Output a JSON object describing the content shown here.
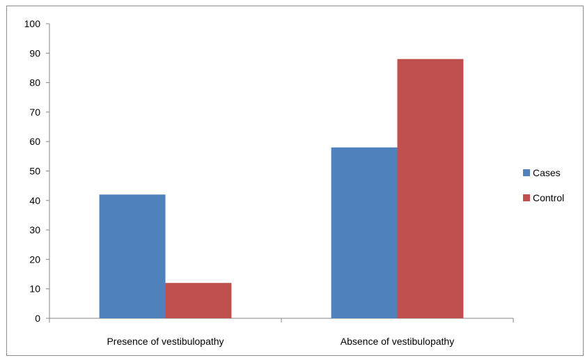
{
  "chart_data": {
    "type": "bar",
    "title": "",
    "xlabel": "",
    "ylabel": "",
    "categories": [
      "Presence of vestibulopathy",
      "Absence of vestibulopathy"
    ],
    "series": [
      {
        "name": "Cases",
        "color": "#4f81bd",
        "values": [
          42,
          58
        ]
      },
      {
        "name": "Control",
        "color": "#c0504d",
        "values": [
          12,
          88
        ]
      }
    ],
    "ylim": [
      0,
      100
    ],
    "yticks": [
      0,
      10,
      20,
      30,
      40,
      50,
      60,
      70,
      80,
      90,
      100
    ],
    "grid": false,
    "legend_position": "right"
  }
}
